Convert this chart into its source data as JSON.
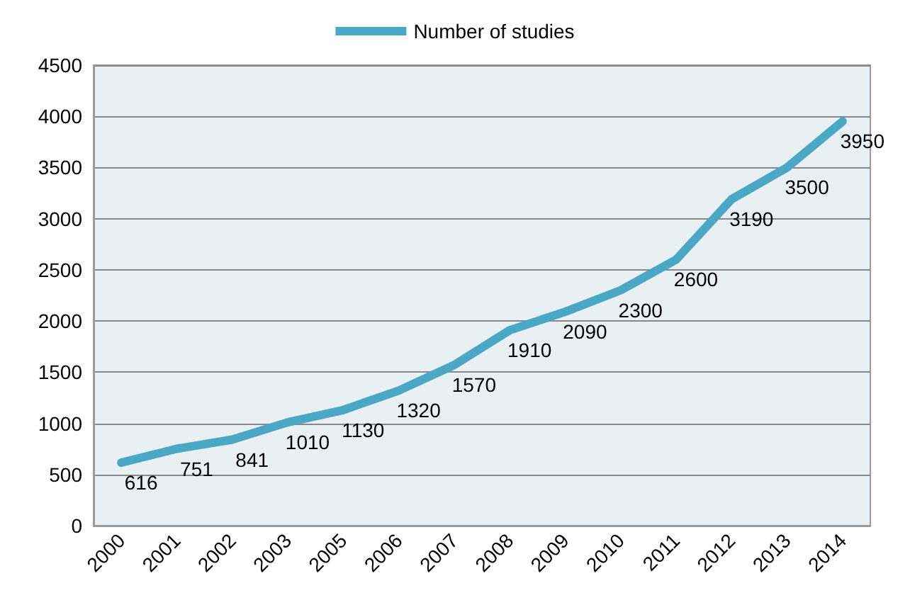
{
  "chart_data": {
    "type": "line",
    "categories": [
      "2000",
      "2001",
      "2002",
      "2003",
      "2005",
      "2006",
      "2007",
      "2008",
      "2009",
      "2010",
      "2011",
      "2012",
      "2013",
      "2014"
    ],
    "series": [
      {
        "name": "Number of studies",
        "color": "#4aa8c4",
        "values": [
          616,
          751,
          841,
          1010,
          1130,
          1320,
          1570,
          1910,
          2090,
          2300,
          2600,
          3190,
          3500,
          3950
        ]
      }
    ],
    "ylim": [
      0,
      4500
    ],
    "yticks": [
      0,
      500,
      1000,
      1500,
      2000,
      2500,
      3000,
      3500,
      4000,
      4500
    ],
    "grid": "y",
    "legend": "top",
    "marker": "none",
    "line_style": "solid",
    "data_labels": true
  }
}
